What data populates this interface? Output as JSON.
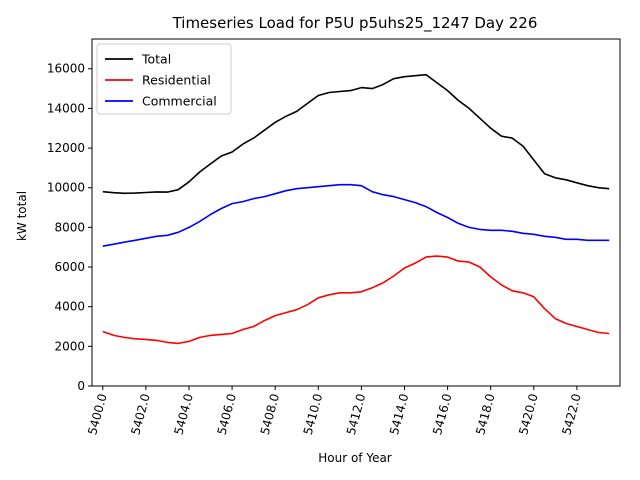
{
  "chart_data": {
    "type": "line",
    "title": "Timeseries Load for P5U p5uhs25_1247  Day 226",
    "xlabel": "Hour of Year",
    "ylabel": "kW total",
    "xlim": [
      5399.5,
      5424.0
    ],
    "ylim": [
      0,
      17500
    ],
    "x_ticks": [
      5400,
      5402,
      5404,
      5406,
      5408,
      5410,
      5412,
      5414,
      5416,
      5418,
      5420,
      5422
    ],
    "x_tick_labels": [
      "5400.0",
      "5402.0",
      "5404.0",
      "5406.0",
      "5408.0",
      "5410.0",
      "5412.0",
      "5414.0",
      "5416.0",
      "5418.0",
      "5420.0",
      "5422.0"
    ],
    "y_ticks": [
      0,
      2000,
      4000,
      6000,
      8000,
      10000,
      12000,
      14000,
      16000
    ],
    "y_tick_labels": [
      "0",
      "2000",
      "4000",
      "6000",
      "8000",
      "10000",
      "12000",
      "14000",
      "16000"
    ],
    "legend_position": "top-left",
    "x": [
      5400.0,
      5400.5,
      5401.0,
      5401.5,
      5402.0,
      5402.5,
      5403.0,
      5403.5,
      5404.0,
      5404.5,
      5405.0,
      5405.5,
      5406.0,
      5406.5,
      5407.0,
      5407.5,
      5408.0,
      5408.5,
      5409.0,
      5409.5,
      5410.0,
      5410.5,
      5411.0,
      5411.5,
      5412.0,
      5412.5,
      5413.0,
      5413.5,
      5414.0,
      5414.5,
      5415.0,
      5415.5,
      5416.0,
      5416.5,
      5417.0,
      5417.5,
      5418.0,
      5418.5,
      5419.0,
      5419.5,
      5420.0,
      5420.5,
      5421.0,
      5421.5,
      5422.0,
      5422.5,
      5423.0,
      5423.5
    ],
    "series": [
      {
        "name": "Total",
        "color": "#000000",
        "values": [
          9800,
          9750,
          9720,
          9730,
          9760,
          9790,
          9780,
          9900,
          10300,
          10800,
          11200,
          11600,
          11800,
          12200,
          12500,
          12900,
          13300,
          13600,
          13850,
          14250,
          14650,
          14800,
          14850,
          14900,
          15050,
          15000,
          15200,
          15500,
          15600,
          15650,
          15700,
          15300,
          14900,
          14400,
          14000,
          13500,
          13000,
          12600,
          12500,
          12100,
          11400,
          10700,
          10500,
          10400,
          10250,
          10100,
          10000,
          9950
        ]
      },
      {
        "name": "Residential",
        "color": "#ff0000",
        "values": [
          2750,
          2550,
          2450,
          2380,
          2350,
          2300,
          2200,
          2150,
          2250,
          2450,
          2550,
          2600,
          2650,
          2850,
          3000,
          3300,
          3550,
          3700,
          3850,
          4100,
          4450,
          4600,
          4700,
          4700,
          4750,
          4950,
          5200,
          5550,
          5950,
          6200,
          6500,
          6550,
          6500,
          6300,
          6250,
          6000,
          5500,
          5100,
          4800,
          4700,
          4500,
          3900,
          3400,
          3150,
          3000,
          2850,
          2700,
          2650
        ]
      },
      {
        "name": "Commercial",
        "color": "#0000ff",
        "values": [
          7050,
          7150,
          7250,
          7350,
          7450,
          7550,
          7600,
          7750,
          8000,
          8300,
          8650,
          8950,
          9200,
          9300,
          9450,
          9550,
          9700,
          9850,
          9950,
          10000,
          10050,
          10100,
          10150,
          10150,
          10100,
          9800,
          9650,
          9550,
          9400,
          9250,
          9050,
          8750,
          8500,
          8200,
          8000,
          7900,
          7850,
          7850,
          7800,
          7700,
          7650,
          7550,
          7500,
          7400,
          7400,
          7350,
          7350,
          7350
        ]
      }
    ]
  }
}
